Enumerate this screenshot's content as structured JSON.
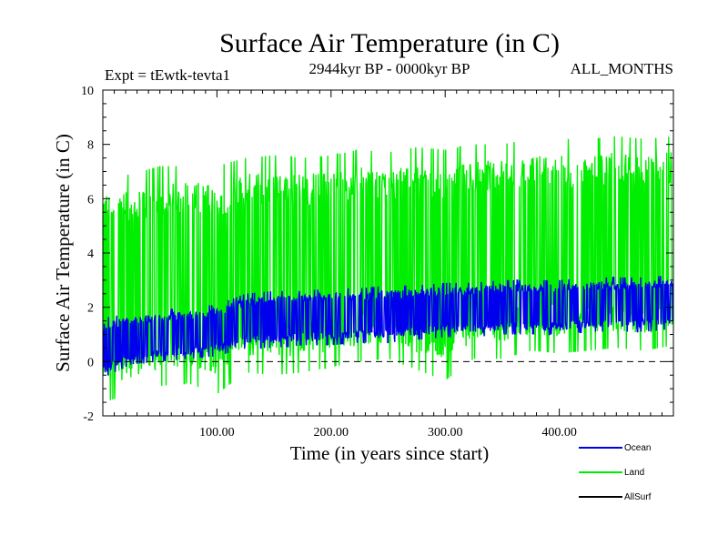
{
  "chart_data": {
    "type": "line",
    "title": "Surface Air Temperature (in C)",
    "subtitle_left": "Expt = tEwtk-tevta1",
    "subtitle_center": "2944kyr BP - 0000kyr BP",
    "subtitle_right": "ALL_MONTHS",
    "xlabel": "Time (in years since start)",
    "ylabel": "Surface Air Temperature (in C)",
    "xlim": [
      0,
      500
    ],
    "ylim": [
      -2,
      10
    ],
    "x_ticks": [
      100,
      200,
      300,
      400
    ],
    "x_tick_labels": [
      "100.00",
      "200.00",
      "300.00",
      "400.00"
    ],
    "y_ticks": [
      -2,
      0,
      2,
      4,
      6,
      8,
      10
    ],
    "y_tick_labels": [
      "-2",
      "0",
      "2",
      "4",
      "6",
      "8",
      "10"
    ],
    "reference_line": 0,
    "series": [
      {
        "name": "Land",
        "color": "#00ee00",
        "x": [
          0,
          25,
          50,
          75,
          100,
          125,
          150,
          175,
          200,
          225,
          250,
          275,
          300,
          325,
          350,
          375,
          400,
          425,
          450,
          475,
          500
        ],
        "min": [
          -1.5,
          -1.2,
          -0.9,
          -0.8,
          -1.2,
          -0.4,
          -0.5,
          -0.4,
          -0.2,
          0.0,
          0.1,
          -0.3,
          -0.7,
          0.1,
          0.1,
          0.4,
          0.3,
          0.4,
          0.5,
          0.4,
          0.6
        ],
        "max": [
          6.8,
          6.9,
          7.2,
          7.2,
          7.2,
          7.5,
          7.6,
          7.5,
          7.6,
          7.8,
          7.7,
          7.9,
          7.8,
          8.0,
          8.0,
          8.2,
          8.2,
          8.2,
          8.3,
          8.2,
          8.3
        ]
      },
      {
        "name": "Ocean",
        "color": "#0000ee",
        "x": [
          0,
          25,
          50,
          75,
          100,
          125,
          150,
          175,
          200,
          225,
          250,
          275,
          300,
          325,
          350,
          375,
          400,
          425,
          450,
          475,
          500
        ],
        "min": [
          -0.6,
          -0.1,
          0.0,
          0.1,
          0.2,
          0.5,
          0.5,
          0.6,
          0.6,
          0.7,
          0.7,
          0.8,
          0.9,
          0.9,
          1.0,
          1.0,
          1.0,
          1.1,
          1.1,
          1.1,
          1.2
        ],
        "max": [
          1.6,
          1.8,
          1.9,
          2.0,
          2.1,
          2.5,
          2.6,
          2.6,
          2.7,
          2.7,
          2.8,
          2.8,
          2.9,
          2.9,
          3.0,
          3.0,
          3.0,
          3.1,
          3.1,
          3.1,
          3.2
        ]
      },
      {
        "name": "AllSurf",
        "color": "#000000"
      }
    ],
    "legend": [
      {
        "label": "Ocean",
        "color": "#0000ee"
      },
      {
        "label": "Land",
        "color": "#00ee00"
      },
      {
        "label": "AllSurf",
        "color": "#000000"
      }
    ]
  }
}
